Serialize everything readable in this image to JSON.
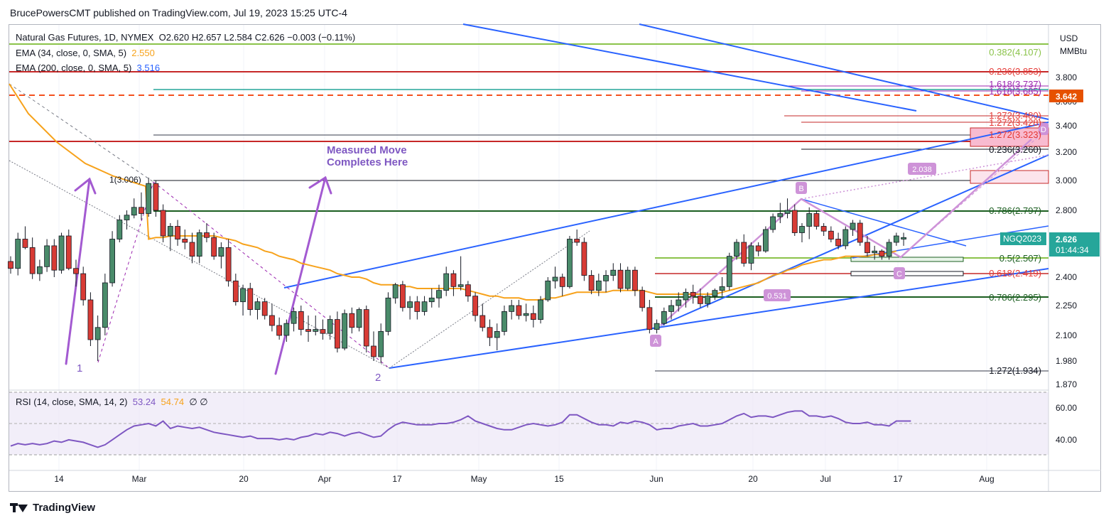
{
  "header": {
    "publisher": "BrucePowersCMT published on TradingView.com, Jul 19, 2023 15:25 UTC-4"
  },
  "legend": {
    "symbol": "Natural Gas Futures, 1D, NYMEX",
    "ohlc": "O2.620  H2.657  L2.584  C2.626  −0.003 (−0.11%)",
    "ema34_label": "EMA (34, close, 0, SMA, 5)",
    "ema34_value": "2.550",
    "ema200_label": "EMA (200, close, 0, SMA, 5)",
    "ema200_value": "3.516",
    "rsi_label": "RSI (14, close, SMA, 14, 2)",
    "rsi_value": "53.24",
    "rsi_sma_value": "54.74",
    "rsi_extra": "∅ ∅"
  },
  "axis": {
    "currency": "USD",
    "unit": "MMBtu",
    "price_ticks": [
      "3.800",
      "3.600",
      "3.400",
      "3.200",
      "3.000",
      "2.800",
      "2.600",
      "2.400",
      "2.250",
      "2.100",
      "1.980",
      "1.870"
    ],
    "rsi_ticks": [
      "60.00",
      "40.00"
    ],
    "x_ticks": [
      "14",
      "Mar",
      "20",
      "Apr",
      "17",
      "May",
      "15",
      "Jun",
      "20",
      "Jul",
      "17",
      "Aug"
    ],
    "last_price_label": "NGQ2023",
    "last_price": "2.626",
    "countdown": "01:44:34",
    "dashed_level_label": "3.642"
  },
  "annotations": {
    "measured_move": [
      "Measured Move",
      "Completes Here"
    ],
    "wave1": "1",
    "wave2": "2",
    "pointA": "A",
    "pointB": "B",
    "pointC": "C",
    "pointD": "D",
    "fib_2038": "2.038",
    "fib_0531": "0.531",
    "fib_start": "1(3.006)"
  },
  "fib_levels": [
    {
      "label": "0.382(4.107)",
      "color": "#8bc34a"
    },
    {
      "label": "0.236(3.853)",
      "color": "#e53935"
    },
    {
      "label": "1.618(3.737)",
      "color": "#9c27b0"
    },
    {
      "label": "1.618(3.685)",
      "color": "#9c27b0"
    },
    {
      "label": "1.272(3.480)",
      "color": "#e53935"
    },
    {
      "label": "1.272(3.428)",
      "color": "#e53935"
    },
    {
      "label": "1.272(3.323)",
      "color": "#e53935"
    },
    {
      "label": "0.236(3.260)",
      "color": "#131722"
    },
    {
      "label": "0.786(2.797)",
      "color": "#1b5e20"
    },
    {
      "label": "0.5(2.507)",
      "color": "#1b5e20"
    },
    {
      "label": "0.618(2.419)",
      "color": "#e53935"
    },
    {
      "label": "0.786(2.295)",
      "color": "#1b5e20"
    },
    {
      "label": "1.272(1.934)",
      "color": "#131722"
    }
  ],
  "chart_data": {
    "type": "candlestick",
    "title": "Natural Gas Futures, 1D, NYMEX",
    "ylim": [
      1.85,
      4.2
    ],
    "rsi_ylim": [
      25,
      75
    ],
    "colors": {
      "up": "#26a69a",
      "down": "#ef5350",
      "ema34": "#f7a21b",
      "rsi": "#7e57c2"
    },
    "candles": [
      [
        2.49,
        2.52,
        2.42,
        2.45
      ],
      [
        2.45,
        2.66,
        2.41,
        2.62
      ],
      [
        2.62,
        2.7,
        2.56,
        2.57
      ],
      [
        2.57,
        2.63,
        2.39,
        2.42
      ],
      [
        2.42,
        2.5,
        2.38,
        2.46
      ],
      [
        2.46,
        2.62,
        2.43,
        2.58
      ],
      [
        2.58,
        2.62,
        2.4,
        2.44
      ],
      [
        2.44,
        2.66,
        2.42,
        2.64
      ],
      [
        2.64,
        2.68,
        2.44,
        2.45
      ],
      [
        2.45,
        2.5,
        2.35,
        2.42
      ],
      [
        2.42,
        2.46,
        2.25,
        2.28
      ],
      [
        2.28,
        2.32,
        2.05,
        2.08
      ],
      [
        2.08,
        2.2,
        1.98,
        2.14
      ],
      [
        2.14,
        2.42,
        2.1,
        2.37
      ],
      [
        2.37,
        2.67,
        2.35,
        2.62
      ],
      [
        2.62,
        2.77,
        2.6,
        2.74
      ],
      [
        2.74,
        2.8,
        2.68,
        2.77
      ],
      [
        2.77,
        2.88,
        2.75,
        2.82
      ],
      [
        2.82,
        2.92,
        2.74,
        2.78
      ],
      [
        2.78,
        3.02,
        2.76,
        2.98
      ],
      [
        2.98,
        3.0,
        2.76,
        2.8
      ],
      [
        2.8,
        2.84,
        2.6,
        2.64
      ],
      [
        2.64,
        2.72,
        2.55,
        2.7
      ],
      [
        2.7,
        2.74,
        2.58,
        2.62
      ],
      [
        2.62,
        2.68,
        2.56,
        2.6
      ],
      [
        2.6,
        2.66,
        2.48,
        2.52
      ],
      [
        2.52,
        2.68,
        2.48,
        2.66
      ],
      [
        2.66,
        2.72,
        2.6,
        2.63
      ],
      [
        2.63,
        2.66,
        2.5,
        2.52
      ],
      [
        2.52,
        2.6,
        2.45,
        2.57
      ],
      [
        2.57,
        2.62,
        2.35,
        2.38
      ],
      [
        2.38,
        2.42,
        2.25,
        2.27
      ],
      [
        2.27,
        2.36,
        2.2,
        2.34
      ],
      [
        2.34,
        2.37,
        2.2,
        2.23
      ],
      [
        2.23,
        2.29,
        2.18,
        2.27
      ],
      [
        2.27,
        2.29,
        2.18,
        2.2
      ],
      [
        2.2,
        2.26,
        2.12,
        2.15
      ],
      [
        2.15,
        2.19,
        2.08,
        2.1
      ],
      [
        2.1,
        2.18,
        2.07,
        2.16
      ],
      [
        2.16,
        2.24,
        2.12,
        2.22
      ],
      [
        2.22,
        2.25,
        2.1,
        2.13
      ],
      [
        2.13,
        2.2,
        2.07,
        2.12
      ],
      [
        2.12,
        2.2,
        2.1,
        2.13
      ],
      [
        2.13,
        2.18,
        2.08,
        2.11
      ],
      [
        2.11,
        2.2,
        2.08,
        2.18
      ],
      [
        2.18,
        2.22,
        2.02,
        2.04
      ],
      [
        2.04,
        2.23,
        2.03,
        2.21
      ],
      [
        2.21,
        2.24,
        2.11,
        2.14
      ],
      [
        2.14,
        2.24,
        2.12,
        2.23
      ],
      [
        2.23,
        2.25,
        2.02,
        2.05
      ],
      [
        2.05,
        2.12,
        1.98,
        2.0
      ],
      [
        2.0,
        2.16,
        1.97,
        2.12
      ],
      [
        2.12,
        2.32,
        2.1,
        2.29
      ],
      [
        2.29,
        2.37,
        2.26,
        2.36
      ],
      [
        2.36,
        2.38,
        2.22,
        2.24
      ],
      [
        2.24,
        2.3,
        2.18,
        2.27
      ],
      [
        2.27,
        2.3,
        2.18,
        2.22
      ],
      [
        2.22,
        2.3,
        2.2,
        2.27
      ],
      [
        2.27,
        2.34,
        2.24,
        2.29
      ],
      [
        2.29,
        2.36,
        2.24,
        2.33
      ],
      [
        2.33,
        2.46,
        2.3,
        2.42
      ],
      [
        2.42,
        2.44,
        2.3,
        2.35
      ],
      [
        2.35,
        2.52,
        2.33,
        2.36
      ],
      [
        2.36,
        2.38,
        2.27,
        2.3
      ],
      [
        2.3,
        2.32,
        2.17,
        2.2
      ],
      [
        2.2,
        2.26,
        2.12,
        2.14
      ],
      [
        2.14,
        2.18,
        2.05,
        2.09
      ],
      [
        2.09,
        2.16,
        2.03,
        2.12
      ],
      [
        2.12,
        2.25,
        2.1,
        2.22
      ],
      [
        2.22,
        2.28,
        2.18,
        2.25
      ],
      [
        2.25,
        2.28,
        2.18,
        2.2
      ],
      [
        2.2,
        2.26,
        2.17,
        2.21
      ],
      [
        2.21,
        2.25,
        2.14,
        2.18
      ],
      [
        2.18,
        2.3,
        2.16,
        2.28
      ],
      [
        2.28,
        2.4,
        2.27,
        2.38
      ],
      [
        2.38,
        2.46,
        2.34,
        2.4
      ],
      [
        2.4,
        2.42,
        2.3,
        2.35
      ],
      [
        2.35,
        2.64,
        2.34,
        2.62
      ],
      [
        2.62,
        2.68,
        2.58,
        2.6
      ],
      [
        2.6,
        2.63,
        2.38,
        2.41
      ],
      [
        2.41,
        2.44,
        2.31,
        2.33
      ],
      [
        2.33,
        2.42,
        2.3,
        2.38
      ],
      [
        2.38,
        2.44,
        2.32,
        2.41
      ],
      [
        2.41,
        2.48,
        2.38,
        2.44
      ],
      [
        2.44,
        2.48,
        2.32,
        2.34
      ],
      [
        2.34,
        2.46,
        2.33,
        2.44
      ],
      [
        2.44,
        2.46,
        2.3,
        2.33
      ],
      [
        2.33,
        2.35,
        2.22,
        2.24
      ],
      [
        2.24,
        2.28,
        2.11,
        2.13
      ],
      [
        2.13,
        2.18,
        2.11,
        2.16
      ],
      [
        2.16,
        2.24,
        2.15,
        2.22
      ],
      [
        2.22,
        2.28,
        2.18,
        2.25
      ],
      [
        2.25,
        2.32,
        2.22,
        2.28
      ],
      [
        2.28,
        2.34,
        2.24,
        2.32
      ],
      [
        2.32,
        2.36,
        2.26,
        2.3
      ],
      [
        2.3,
        2.34,
        2.24,
        2.26
      ],
      [
        2.26,
        2.32,
        2.24,
        2.3
      ],
      [
        2.3,
        2.34,
        2.28,
        2.33
      ],
      [
        2.33,
        2.4,
        2.3,
        2.35
      ],
      [
        2.35,
        2.54,
        2.33,
        2.52
      ],
      [
        2.52,
        2.62,
        2.5,
        2.6
      ],
      [
        2.6,
        2.65,
        2.46,
        2.48
      ],
      [
        2.48,
        2.6,
        2.44,
        2.58
      ],
      [
        2.58,
        2.6,
        2.52,
        2.55
      ],
      [
        2.55,
        2.7,
        2.54,
        2.68
      ],
      [
        2.68,
        2.78,
        2.66,
        2.76
      ],
      [
        2.76,
        2.85,
        2.72,
        2.78
      ],
      [
        2.78,
        2.88,
        2.75,
        2.8
      ],
      [
        2.8,
        2.84,
        2.64,
        2.66
      ],
      [
        2.66,
        2.72,
        2.6,
        2.7
      ],
      [
        2.7,
        2.82,
        2.62,
        2.78
      ],
      [
        2.78,
        2.8,
        2.68,
        2.7
      ],
      [
        2.7,
        2.72,
        2.64,
        2.67
      ],
      [
        2.67,
        2.7,
        2.6,
        2.62
      ],
      [
        2.62,
        2.66,
        2.56,
        2.58
      ],
      [
        2.58,
        2.7,
        2.56,
        2.68
      ],
      [
        2.68,
        2.74,
        2.64,
        2.72
      ],
      [
        2.72,
        2.74,
        2.58,
        2.6
      ],
      [
        2.6,
        2.64,
        2.52,
        2.54
      ],
      [
        2.54,
        2.58,
        2.5,
        2.55
      ],
      [
        2.55,
        2.56,
        2.5,
        2.52
      ],
      [
        2.52,
        2.62,
        2.5,
        2.6
      ],
      [
        2.6,
        2.66,
        2.58,
        2.64
      ],
      [
        2.62,
        2.66,
        2.58,
        2.63
      ]
    ],
    "ema34": [
      2.62,
      2.61,
      2.61,
      2.6,
      2.6,
      2.6,
      2.6,
      2.6,
      2.6,
      2.59,
      2.58,
      2.56,
      2.55,
      2.55,
      2.56,
      2.57,
      2.58,
      2.59,
      2.6,
      2.62,
      2.63,
      2.63,
      2.64,
      2.64,
      2.64,
      2.64,
      2.64,
      2.64,
      2.64,
      2.63,
      2.62,
      2.61,
      2.59,
      2.58,
      2.57,
      2.55,
      2.54,
      2.52,
      2.51,
      2.5,
      2.48,
      2.47,
      2.46,
      2.45,
      2.44,
      2.42,
      2.41,
      2.4,
      2.4,
      2.39,
      2.37,
      2.36,
      2.36,
      2.36,
      2.35,
      2.35,
      2.34,
      2.34,
      2.34,
      2.34,
      2.34,
      2.34,
      2.34,
      2.33,
      2.32,
      2.31,
      2.3,
      2.3,
      2.29,
      2.29,
      2.29,
      2.28,
      2.28,
      2.28,
      2.29,
      2.29,
      2.3,
      2.31,
      2.32,
      2.32,
      2.32,
      2.32,
      2.32,
      2.33,
      2.33,
      2.33,
      2.33,
      2.33,
      2.32,
      2.31,
      2.31,
      2.31,
      2.31,
      2.31,
      2.31,
      2.31,
      2.31,
      2.31,
      2.32,
      2.33,
      2.34,
      2.35,
      2.36,
      2.37,
      2.39,
      2.41,
      2.42,
      2.44,
      2.45,
      2.47,
      2.48,
      2.49,
      2.5,
      2.5,
      2.51,
      2.52,
      2.52,
      2.52,
      2.52,
      2.53,
      2.53,
      2.54,
      2.55
    ],
    "rsi": [
      32,
      34,
      33,
      34,
      33,
      34,
      36,
      35,
      37,
      36,
      35,
      33,
      31,
      33,
      37,
      41,
      45,
      48,
      49,
      50,
      48,
      52,
      46,
      48,
      47,
      46,
      47,
      45,
      43,
      42,
      41,
      40,
      39,
      40,
      38,
      38,
      38,
      37,
      38,
      37,
      39,
      40,
      42,
      41,
      43,
      42,
      40,
      42,
      43,
      41,
      39,
      40,
      45,
      49,
      51,
      50,
      49,
      49,
      49,
      50,
      50,
      51,
      53,
      56,
      52,
      50,
      48,
      46,
      45,
      45,
      47,
      49,
      50,
      49,
      48,
      49,
      51,
      57,
      57,
      54,
      51,
      49,
      49,
      48,
      51,
      50,
      52,
      51,
      49,
      45,
      46,
      46,
      48,
      49,
      50,
      48,
      48,
      49,
      50,
      53,
      56,
      58,
      55,
      56,
      56,
      55,
      57,
      59,
      60,
      60,
      56,
      56,
      55,
      56,
      54,
      51,
      50,
      50,
      51,
      49,
      49,
      48,
      52,
      52,
      52
    ],
    "price_ticks": [
      3.8,
      3.6,
      3.4,
      3.2,
      3.0,
      2.8,
      2.6,
      2.4,
      2.25,
      2.1,
      1.98,
      1.87
    ],
    "rsi_ticks": [
      60,
      40
    ]
  }
}
